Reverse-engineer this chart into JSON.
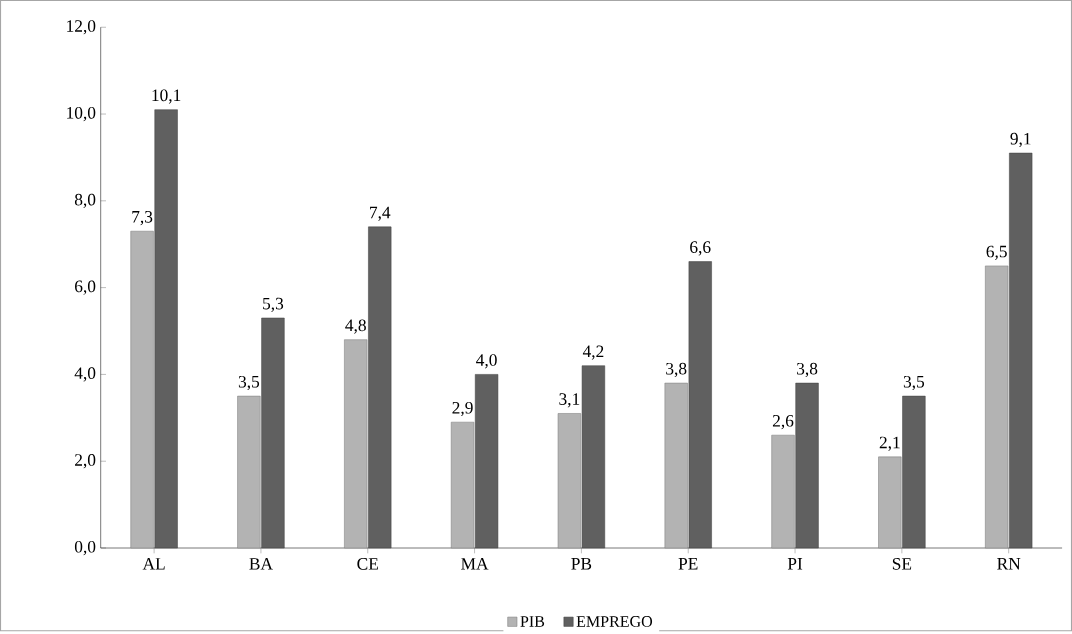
{
  "chart_data": {
    "type": "bar",
    "categories": [
      "AL",
      "BA",
      "CE",
      "MA",
      "PB",
      "PE",
      "PI",
      "SE",
      "RN"
    ],
    "series": [
      {
        "name": "PIB",
        "color": "#b3b3b3",
        "values": [
          7.3,
          3.5,
          4.8,
          2.9,
          3.1,
          3.8,
          2.6,
          2.1,
          6.5
        ],
        "value_labels": [
          "7,3",
          "3,5",
          "4,8",
          "2,9",
          "3,1",
          "3,8",
          "2,6",
          "2,1",
          "6,5"
        ]
      },
      {
        "name": "EMPREGO",
        "color": "#606060",
        "values": [
          10.1,
          5.3,
          7.4,
          4.0,
          4.2,
          6.6,
          3.8,
          3.5,
          9.1
        ],
        "value_labels": [
          "10,1",
          "5,3",
          "7,4",
          "4,0",
          "4,2",
          "6,6",
          "3,8",
          "3,5",
          "9,1"
        ]
      }
    ],
    "ylim": [
      0,
      12
    ],
    "yticks": [
      {
        "value": 0,
        "label": "0,0"
      },
      {
        "value": 2,
        "label": "2,0"
      },
      {
        "value": 4,
        "label": "4,0"
      },
      {
        "value": 6,
        "label": "6,0"
      },
      {
        "value": 8,
        "label": "8,0"
      },
      {
        "value": 10,
        "label": "10,0"
      },
      {
        "value": 12,
        "label": "12,0"
      }
    ],
    "legend": "bottom"
  }
}
